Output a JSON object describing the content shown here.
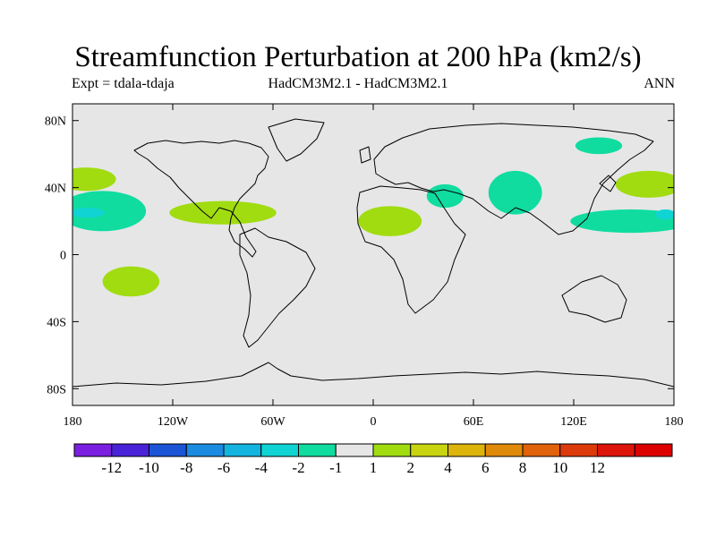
{
  "chart_data": {
    "type": "heatmap",
    "title": "Streamfunction Perturbation at 200 hPa (km2/s)",
    "left_label": "Expt = tdala-tdaja",
    "center_label": "HadCM3M2.1 - HadCM3M2.1",
    "right_label": "ANN",
    "x_range": [
      -180,
      180
    ],
    "y_range": [
      -90,
      90
    ],
    "x_ticks": [
      {
        "value": -180,
        "label": "180"
      },
      {
        "value": -120,
        "label": "120W"
      },
      {
        "value": -60,
        "label": "60W"
      },
      {
        "value": 0,
        "label": "0"
      },
      {
        "value": 60,
        "label": "60E"
      },
      {
        "value": 120,
        "label": "120E"
      },
      {
        "value": 180,
        "label": "180"
      }
    ],
    "y_ticks": [
      {
        "value": 80,
        "label": "80N"
      },
      {
        "value": 40,
        "label": "40N"
      },
      {
        "value": 0,
        "label": "0"
      },
      {
        "value": -40,
        "label": "40S"
      },
      {
        "value": -80,
        "label": "80S"
      }
    ],
    "colorbar": {
      "colors": [
        "#7b1fe0",
        "#4a22d8",
        "#1b55d6",
        "#1a8be0",
        "#14b4e0",
        "#10d4d4",
        "#10dca0",
        "#e6e6e6",
        "#a0dc10",
        "#c8d410",
        "#dcb40a",
        "#e08a0a",
        "#e0620a",
        "#dc3a0a",
        "#dc140a",
        "#dc0000"
      ],
      "labels": [
        "-12",
        "-10",
        "-8",
        "-6",
        "-4",
        "-2",
        "-1",
        "1",
        "2",
        "4",
        "6",
        "8",
        "10",
        "12"
      ]
    },
    "regions": [
      {
        "name": "north-pacific-east-positive",
        "level": "1 to 2",
        "color": "#a0dc10",
        "lon": -172,
        "lat": 45,
        "dlon": 18,
        "dlat": 7
      },
      {
        "name": "subtropical-pacific-east-negative",
        "level": "-2 to -1",
        "color": "#10dca0",
        "lon": -162,
        "lat": 26,
        "dlon": 26,
        "dlat": 12
      },
      {
        "name": "subtropical-pacific-east-core",
        "level": "-4 to -2",
        "color": "#10d4d4",
        "lon": -171,
        "lat": 25,
        "dlon": 10,
        "dlat": 3
      },
      {
        "name": "caribbean-positive",
        "level": "1 to 2",
        "color": "#a0dc10",
        "lon": -90,
        "lat": 25,
        "dlon": 32,
        "dlat": 7
      },
      {
        "name": "south-pacific-positive",
        "level": "1 to 2",
        "color": "#a0dc10",
        "lon": -145,
        "lat": -16,
        "dlon": 17,
        "dlat": 9
      },
      {
        "name": "north-africa-positive",
        "level": "1 to 2",
        "color": "#a0dc10",
        "lon": 10,
        "lat": 20,
        "dlon": 19,
        "dlat": 9
      },
      {
        "name": "middle-east-negative",
        "level": "-2 to -1",
        "color": "#10dca0",
        "lon": 43,
        "lat": 35,
        "dlon": 11,
        "dlat": 7
      },
      {
        "name": "tibet-negative",
        "level": "-2 to -1",
        "color": "#10dca0",
        "lon": 85,
        "lat": 37,
        "dlon": 16,
        "dlat": 13
      },
      {
        "name": "east-siberia-negative",
        "level": "-2 to -1",
        "color": "#10dca0",
        "lon": 135,
        "lat": 65,
        "dlon": 14,
        "dlat": 5
      },
      {
        "name": "west-pacific-negative",
        "level": "-2 to -1",
        "color": "#10dca0",
        "lon": 154,
        "lat": 20,
        "dlon": 36,
        "dlat": 7
      },
      {
        "name": "west-pacific-core",
        "level": "-4 to -2",
        "color": "#10d4d4",
        "lon": 175,
        "lat": 24,
        "dlon": 6,
        "dlat": 3
      },
      {
        "name": "north-pacific-west-positive",
        "level": "1 to 2",
        "color": "#a0dc10",
        "lon": 165,
        "lat": 42,
        "dlon": 20,
        "dlat": 8
      }
    ]
  }
}
